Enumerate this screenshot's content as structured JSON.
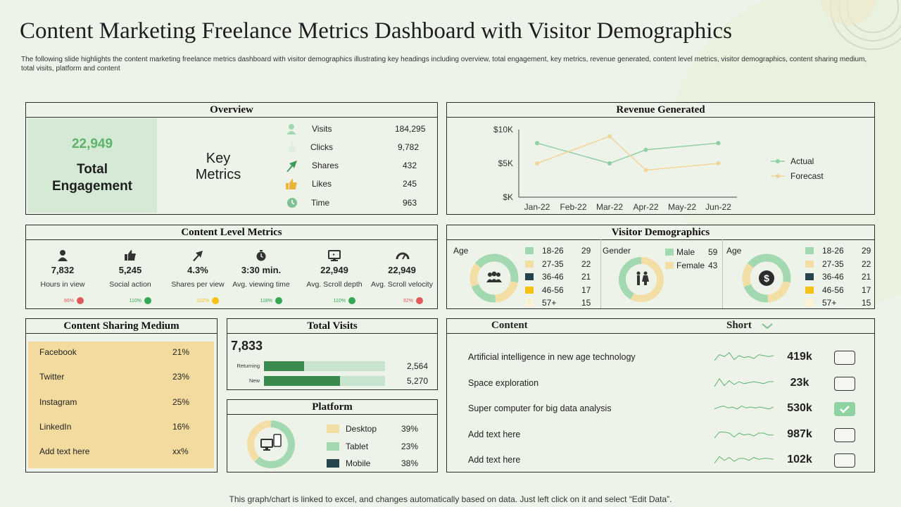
{
  "header": {
    "title": "Content Marketing Freelance Metrics Dashboard with Visitor Demographics",
    "subtitle": "The following slide highlights the content marketing  freelance metrics dashboard with visitor demographics illustrating key headings including overview, total engagement, key metrics, revenue generated, content level metrics, visitor demographics, content sharing medium,  total visits, platform and content"
  },
  "overview": {
    "title": "Overview",
    "engagement_value": "22,949",
    "engagement_label_1": "Total",
    "engagement_label_2": "Engagement",
    "key_metrics_1": "Key",
    "key_metrics_2": "Metrics",
    "metrics": [
      {
        "icon": "user-icon",
        "label": "Visits",
        "value": "184,295"
      },
      {
        "icon": "pointer-icon",
        "label": "Clicks",
        "value": "9,782"
      },
      {
        "icon": "share-icon",
        "label": "Shares",
        "value": "432"
      },
      {
        "icon": "thumbs-up-icon",
        "label": "Likes",
        "value": "245"
      },
      {
        "icon": "clock-icon",
        "label": "Time",
        "value": "963"
      }
    ]
  },
  "revenue": {
    "title": "Revenue Generated",
    "legend_actual": "Actual",
    "legend_forecast": "Forecast"
  },
  "chart_data": {
    "type": "line",
    "title": "Revenue Generated",
    "categories": [
      "Jan-22",
      "Feb-22",
      "Mar-22",
      "Apr-22",
      "May-22",
      "Jun-22"
    ],
    "y_tick_labels": [
      "$10K",
      "$5K",
      "$K"
    ],
    "ylim": [
      0,
      10000
    ],
    "series": [
      {
        "name": "Actual",
        "color": "#8fcfa2",
        "values": [
          8000,
          null,
          5000,
          7000,
          null,
          8000
        ]
      },
      {
        "name": "Forecast",
        "color": "#f2d49a",
        "values": [
          5000,
          null,
          9000,
          4000,
          null,
          5000
        ]
      }
    ],
    "legend": "right"
  },
  "content_level": {
    "title": "Content Level Metrics",
    "items": [
      {
        "icon": "person-icon",
        "value": "7,832",
        "label": "Hours in view",
        "pct": "86%",
        "dot": "#e05a5a"
      },
      {
        "icon": "thumbs-up-icon",
        "value": "5,245",
        "label": "Social action",
        "pct": "110%",
        "dot": "#34a853"
      },
      {
        "icon": "share-icon",
        "value": "4.3%",
        "label": "Shares per view",
        "pct": "102%",
        "dot": "#f5c116"
      },
      {
        "icon": "timer-icon",
        "value": "3:30 min.",
        "label": "Avg. viewing time",
        "pct": "118%",
        "dot": "#34a853"
      },
      {
        "icon": "monitor-icon",
        "value": "22,949",
        "label": "Avg. Scroll depth",
        "pct": "110%",
        "dot": "#34a853"
      },
      {
        "icon": "gauge-icon",
        "value": "22,949",
        "label": "Avg. Scroll velocity",
        "pct": "82%",
        "dot": "#e05a5a"
      }
    ]
  },
  "visitor_demo": {
    "title": "Visitor Demographics",
    "age_label": "Age",
    "gender_label": "Gender",
    "age_rows": [
      {
        "range": "18-26",
        "value": "29",
        "color": "#a3d9b1"
      },
      {
        "range": "27-35",
        "value": "22",
        "color": "#f3dfa6"
      },
      {
        "range": "36-46",
        "value": "21",
        "color": "#25444c"
      },
      {
        "range": "46-56",
        "value": "17",
        "color": "#f5c116"
      },
      {
        "range": "57+",
        "value": "15",
        "color": "#fbf3d4"
      }
    ],
    "gender_rows": [
      {
        "label": "Male",
        "value": "59",
        "color": "#a3d9b1"
      },
      {
        "label": "Female",
        "value": "43",
        "color": "#f3dfa6"
      }
    ]
  },
  "sharing": {
    "title": "Content Sharing Medium",
    "rows": [
      {
        "name": "Facebook",
        "value": "21%"
      },
      {
        "name": "Twitter",
        "value": "23%"
      },
      {
        "name": "Instagram",
        "value": "25%"
      },
      {
        "name": "LinkedIn",
        "value": "16%"
      },
      {
        "name": "Add text here",
        "value": "xx%"
      }
    ]
  },
  "visits": {
    "title": "Total Visits",
    "total": "7,833",
    "rows": [
      {
        "label": "Returning",
        "value": "2,564",
        "fill": 0.33
      },
      {
        "label": "New",
        "value": "5,270",
        "fill": 0.63
      }
    ]
  },
  "platform": {
    "title": "Platform",
    "rows": [
      {
        "label": "Desktop",
        "value": "39%",
        "color": "#f3dfa6"
      },
      {
        "label": "Tablet",
        "value": "23%",
        "color": "#a3d9b1"
      },
      {
        "label": "Mobile",
        "value": "38%",
        "color": "#25444c"
      }
    ]
  },
  "content": {
    "title": "Content",
    "short_label": "Short",
    "rows": [
      {
        "text": "Artificial intelligence in new age technology",
        "value": "419k",
        "checked": false
      },
      {
        "text": "Space exploration",
        "value": "23k",
        "checked": false
      },
      {
        "text": "Super computer for big data analysis",
        "value": "530k",
        "checked": true
      },
      {
        "text": "Add text here",
        "value": "987k",
        "checked": false
      },
      {
        "text": "Add text here",
        "value": "102k",
        "checked": false
      }
    ]
  },
  "footer": {
    "text": "This graph/chart is linked to excel,  and changes automatically based on data. Just left click on it and select “Edit Data”."
  }
}
